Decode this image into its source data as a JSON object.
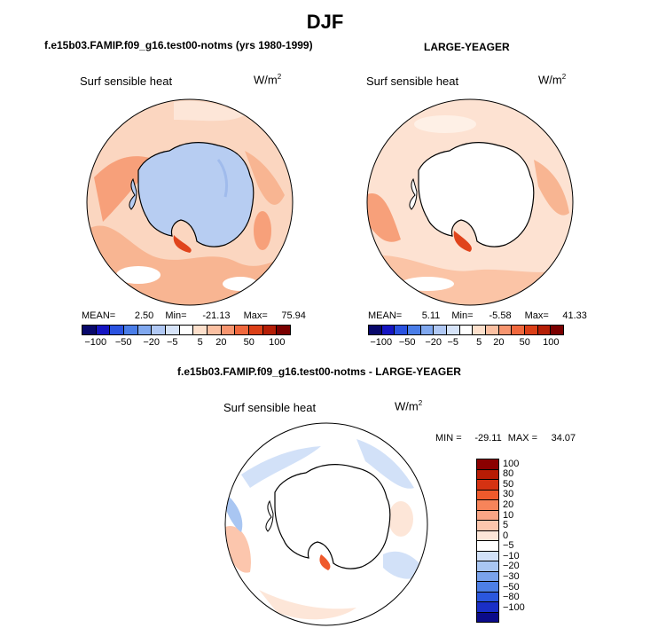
{
  "title": "DJF",
  "panels": [
    {
      "id": "model",
      "title": "f.e15b03.FAMIP.f09_g16.test00-notms (yrs 1980-1999)",
      "variable": "Surf sensible heat",
      "units_base": "W/m",
      "units_exp": "2",
      "stats": {
        "mean_label": "MEAN=",
        "mean": "2.50",
        "min_label": "Min=",
        "min": "-21.13",
        "max_label": "Max=",
        "max": "75.94"
      },
      "ice_shelf": "fill",
      "colorbar": {
        "orientation": "horizontal",
        "tick_labels": [
          "−100",
          "−50",
          "−20",
          "−5",
          "5",
          "20",
          "50",
          "100"
        ],
        "colors": [
          "#08086b",
          "#1515c2",
          "#2a52e0",
          "#4a7de8",
          "#80a8ef",
          "#b0c8f4",
          "#d6e3f8",
          "#ffffff",
          "#fde0cc",
          "#fbc0a2",
          "#f7956f",
          "#f0683d",
          "#db3f17",
          "#b51e06",
          "#7a0000"
        ]
      }
    },
    {
      "id": "obs",
      "title": "LARGE-YEAGER",
      "variable": "Surf sensible heat",
      "units_base": "W/m",
      "units_exp": "2",
      "stats": {
        "mean_label": "MEAN=",
        "mean": "5.11",
        "min_label": "Min=",
        "min": "-5.58",
        "max_label": "Max=",
        "max": "41.33"
      },
      "ice_shelf": "none",
      "colorbar": {
        "orientation": "horizontal",
        "tick_labels": [
          "−100",
          "−50",
          "−20",
          "−5",
          "5",
          "20",
          "50",
          "100"
        ],
        "colors": [
          "#08086b",
          "#1515c2",
          "#2a52e0",
          "#4a7de8",
          "#80a8ef",
          "#b0c8f4",
          "#d6e3f8",
          "#ffffff",
          "#fde0cc",
          "#fbc0a2",
          "#f7956f",
          "#f0683d",
          "#db3f17",
          "#b51e06",
          "#7a0000"
        ]
      }
    },
    {
      "id": "diff",
      "title": "f.e15b03.FAMIP.f09_g16.test00-notms - LARGE-YEAGER",
      "variable": "Surf sensible heat",
      "units_base": "W/m",
      "units_exp": "2",
      "stats": {
        "min_label": "MIN =",
        "min": "-29.11",
        "max_label": "MAX =",
        "max": "34.07"
      },
      "ice_shelf": "none",
      "colorbar": {
        "orientation": "vertical",
        "tick_labels": [
          "100",
          "80",
          "50",
          "30",
          "20",
          "10",
          "5",
          "0",
          "−5",
          "−10",
          "−20",
          "−30",
          "−50",
          "−80",
          "−100"
        ],
        "colors": [
          "#8b0000",
          "#b71c05",
          "#d53212",
          "#ef5a2c",
          "#f7845a",
          "#f9a585",
          "#fcc6ad",
          "#fde6d8",
          "#ffffff",
          "#d2e1f8",
          "#a9c6f2",
          "#7aa3ec",
          "#4d7fe6",
          "#2b57de",
          "#1a2fc7",
          "#0b0b8a"
        ]
      }
    }
  ],
  "maps": [
    {
      "panel": 0,
      "background": "#fbd6c0",
      "land_fill": "#b7cdf2"
    },
    {
      "panel": 1,
      "background": "#fde2d2",
      "land_fill": "#ffffff"
    },
    {
      "panel": 2,
      "background": "#ffffff",
      "land_fill": "#ffffff"
    }
  ]
}
